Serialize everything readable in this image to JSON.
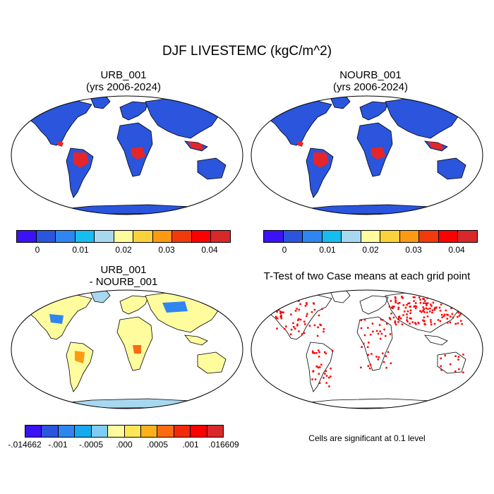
{
  "title": "DJF LIVESTEMC (kgC/m^2)",
  "panels": {
    "urb": {
      "line1": "URB_001",
      "line2": "(yrs 2006-2024)"
    },
    "nourb": {
      "line1": "NOURB_001",
      "line2": "(yrs 2006-2024)"
    },
    "diff": {
      "line1": "URB_001",
      "line2": "- NOURB_001"
    },
    "ttest": {
      "line1": "T-Test of two Case means at each grid point"
    }
  },
  "colorbar_top": {
    "colors": [
      "#3a12f5",
      "#2a55dc",
      "#2f86f0",
      "#18bdf0",
      "#a8d8f0",
      "#fffc9e",
      "#fcd23c",
      "#fc9a14",
      "#f23a0c",
      "#ff0000",
      "#d8282a"
    ],
    "labels": [
      "0",
      "0.01",
      "0.02",
      "0.03",
      "0.04"
    ]
  },
  "colorbar_diff": {
    "colors": [
      "#3a12f5",
      "#2a55dc",
      "#2f86f0",
      "#18a8f0",
      "#7fcdf2",
      "#fffc9e",
      "#fde65a",
      "#fcb01e",
      "#fc6a12",
      "#f22a0c",
      "#ff0000",
      "#d8282a"
    ],
    "labels": [
      "-.014662",
      "-.001",
      "-.0005",
      ".000",
      ".0005",
      ".001",
      ".016609"
    ]
  },
  "significance_note": "Cells are significant at 0.1 level",
  "map_colors": {
    "low": "#2a55dc",
    "high": "#e4252a",
    "mid": "#2f86f0",
    "ocean": "#ffffff",
    "diff_land": "#fffc9e",
    "diff_ice": "#a8d8f0",
    "sig": "#ff0000"
  }
}
